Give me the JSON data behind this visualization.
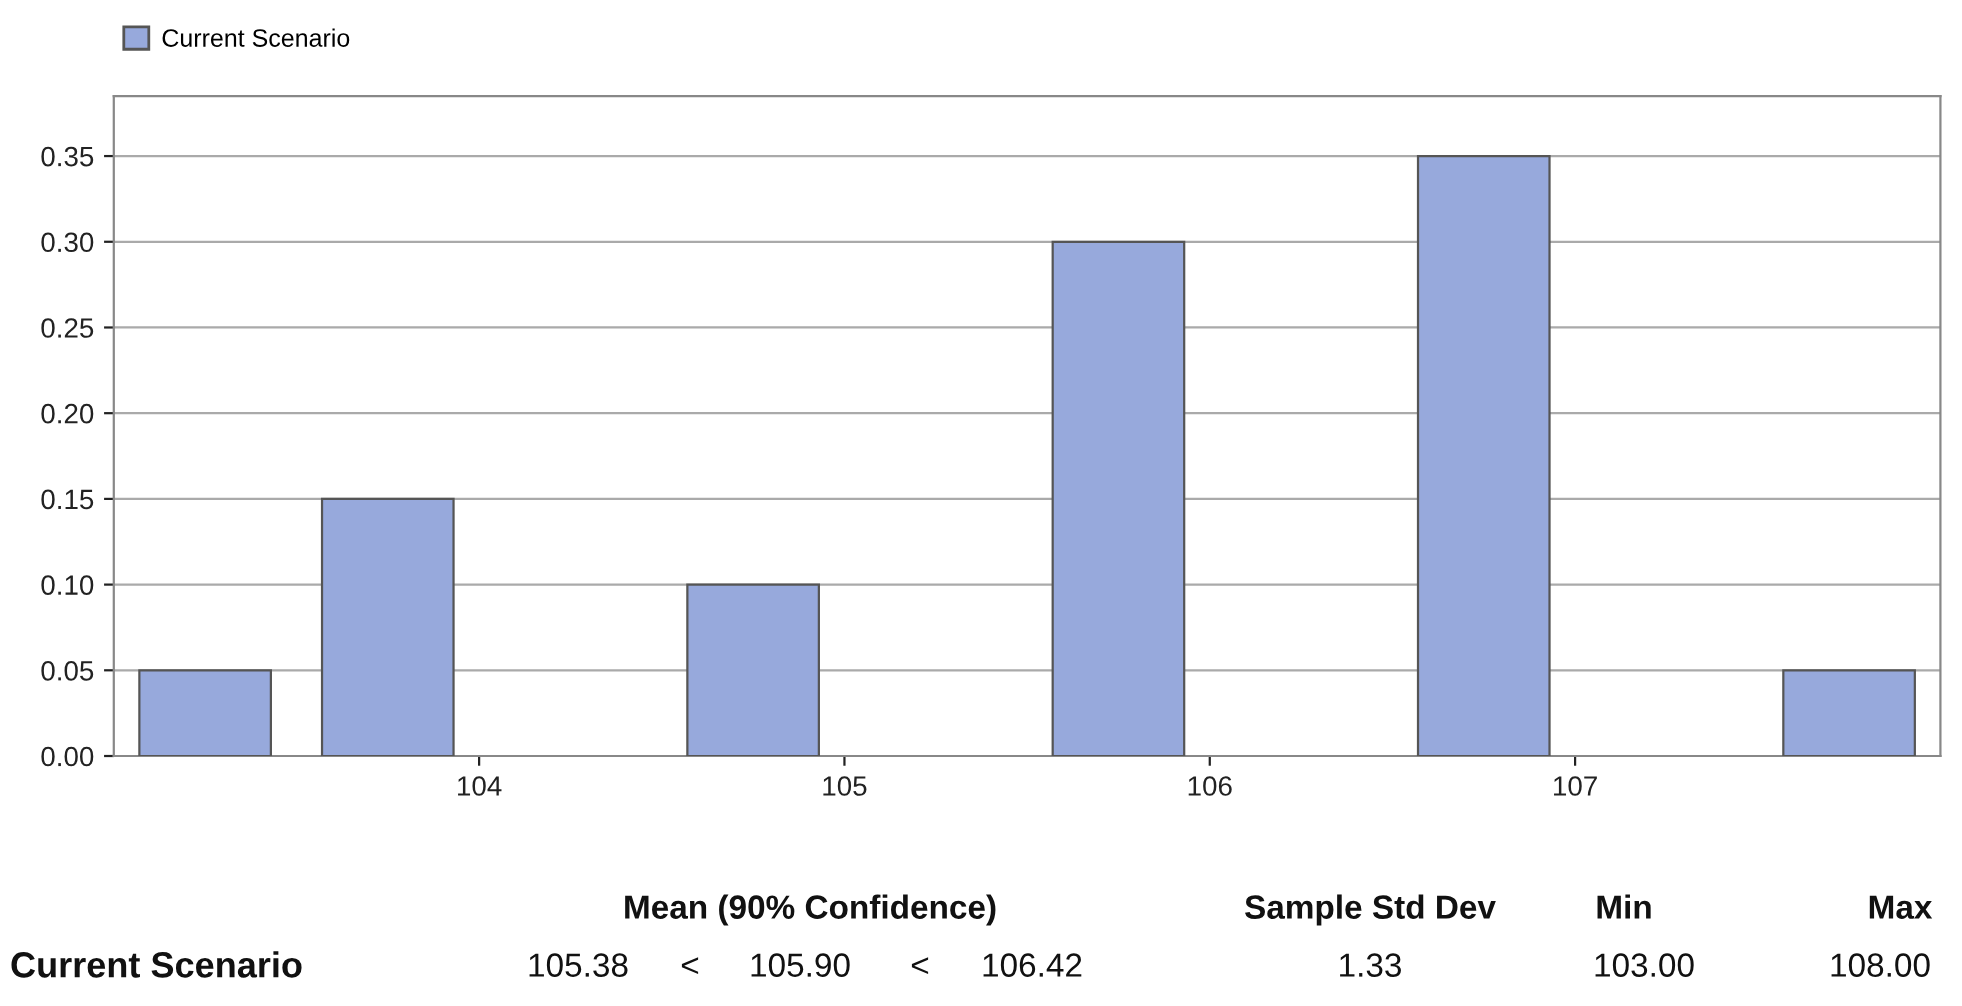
{
  "chart_data": {
    "type": "histogram",
    "bins": [
      103,
      103.5,
      104,
      104.5,
      105,
      105.5,
      106,
      106.5,
      107,
      107.5,
      108
    ],
    "series": [
      {
        "name": "Current Scenario",
        "color": "#97a9dc",
        "values": [
          0.05,
          0.15,
          0,
          0.1,
          0,
          0.3,
          0,
          0.35,
          0,
          0.05
        ]
      }
    ],
    "xlim": [
      103,
      108
    ],
    "xticks": [
      104,
      105,
      106,
      107
    ],
    "ylim": [
      0,
      0.385
    ],
    "yticks": [
      {
        "value": 0,
        "label": "0.00"
      },
      {
        "value": 0.05,
        "label": "0.05"
      },
      {
        "value": 0.1,
        "label": "0.10"
      },
      {
        "value": 0.15,
        "label": "0.15"
      },
      {
        "value": 0.2,
        "label": "0.20"
      },
      {
        "value": 0.25,
        "label": "0.25"
      },
      {
        "value": 0.3,
        "label": "0.30"
      },
      {
        "value": 0.35,
        "label": "0.35"
      }
    ],
    "grid": "y",
    "legend": "top left",
    "annotations": [
      "Mean (90% Confidence)",
      "Sample Std Dev",
      "Min",
      "Max",
      "Current Scenario",
      "105.38",
      "<",
      "105.90",
      "<",
      "106.42",
      "1.33",
      "103.00",
      "108.00"
    ]
  }
}
